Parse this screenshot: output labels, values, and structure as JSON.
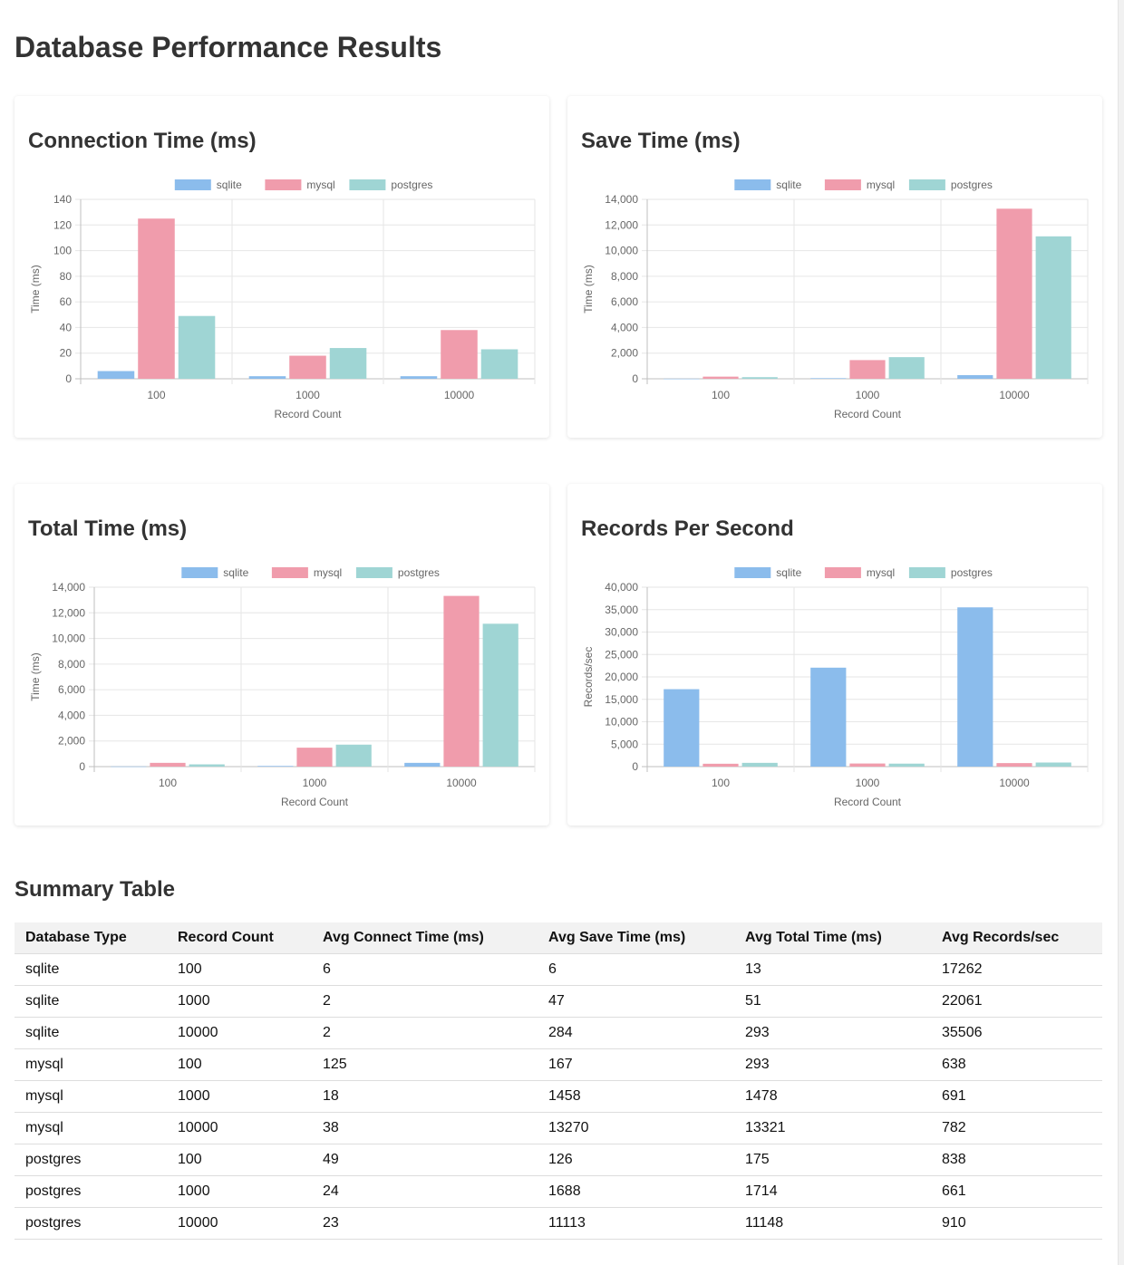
{
  "page": {
    "title": "Database Performance Results"
  },
  "series_names": [
    "sqlite",
    "mysql",
    "postgres"
  ],
  "colors": {
    "sqlite": "#8bbcec",
    "mysql": "#f09cac",
    "postgres": "#9fd5d4"
  },
  "chart_data": [
    {
      "type": "bar",
      "title": "Connection Time (ms)",
      "xlabel": "Record Count",
      "ylabel": "Time (ms)",
      "categories": [
        "100",
        "1000",
        "10000"
      ],
      "ylim": [
        0,
        140
      ],
      "yticks": [
        "0",
        "20",
        "40",
        "60",
        "80",
        "100",
        "120",
        "140"
      ],
      "series": [
        {
          "name": "sqlite",
          "values": [
            6,
            2,
            2
          ]
        },
        {
          "name": "mysql",
          "values": [
            125,
            18,
            38
          ]
        },
        {
          "name": "postgres",
          "values": [
            49,
            24,
            23
          ]
        }
      ],
      "legend": "top-center",
      "grid": true
    },
    {
      "type": "bar",
      "title": "Save Time (ms)",
      "xlabel": "Record Count",
      "ylabel": "Time (ms)",
      "categories": [
        "100",
        "1000",
        "10000"
      ],
      "ylim": [
        0,
        14000
      ],
      "yticks": [
        "0",
        "2,000",
        "4,000",
        "6,000",
        "8,000",
        "10,000",
        "12,000",
        "14,000"
      ],
      "series": [
        {
          "name": "sqlite",
          "values": [
            6,
            47,
            284
          ]
        },
        {
          "name": "mysql",
          "values": [
            167,
            1458,
            13270
          ]
        },
        {
          "name": "postgres",
          "values": [
            126,
            1688,
            11113
          ]
        }
      ],
      "legend": "top-center",
      "grid": true
    },
    {
      "type": "bar",
      "title": "Total Time (ms)",
      "xlabel": "Record Count",
      "ylabel": "Time (ms)",
      "categories": [
        "100",
        "1000",
        "10000"
      ],
      "ylim": [
        0,
        14000
      ],
      "yticks": [
        "0",
        "2,000",
        "4,000",
        "6,000",
        "8,000",
        "10,000",
        "12,000",
        "14,000"
      ],
      "series": [
        {
          "name": "sqlite",
          "values": [
            13,
            51,
            293
          ]
        },
        {
          "name": "mysql",
          "values": [
            293,
            1478,
            13321
          ]
        },
        {
          "name": "postgres",
          "values": [
            175,
            1714,
            11148
          ]
        }
      ],
      "legend": "top-center",
      "grid": true
    },
    {
      "type": "bar",
      "title": "Records Per Second",
      "xlabel": "Record Count",
      "ylabel": "Records/sec",
      "categories": [
        "100",
        "1000",
        "10000"
      ],
      "ylim": [
        0,
        40000
      ],
      "yticks": [
        "0",
        "5,000",
        "10,000",
        "15,000",
        "20,000",
        "25,000",
        "30,000",
        "35,000",
        "40,000"
      ],
      "series": [
        {
          "name": "sqlite",
          "values": [
            17262,
            22061,
            35506
          ]
        },
        {
          "name": "mysql",
          "values": [
            638,
            691,
            782
          ]
        },
        {
          "name": "postgres",
          "values": [
            838,
            661,
            910
          ]
        }
      ],
      "legend": "top-center",
      "grid": true
    }
  ],
  "summary": {
    "title": "Summary Table",
    "columns": [
      "Database Type",
      "Record Count",
      "Avg Connect Time (ms)",
      "Avg Save Time (ms)",
      "Avg Total Time (ms)",
      "Avg Records/sec"
    ],
    "rows": [
      [
        "sqlite",
        "100",
        "6",
        "6",
        "13",
        "17262"
      ],
      [
        "sqlite",
        "1000",
        "2",
        "47",
        "51",
        "22061"
      ],
      [
        "sqlite",
        "10000",
        "2",
        "284",
        "293",
        "35506"
      ],
      [
        "mysql",
        "100",
        "125",
        "167",
        "293",
        "638"
      ],
      [
        "mysql",
        "1000",
        "18",
        "1458",
        "1478",
        "691"
      ],
      [
        "mysql",
        "10000",
        "38",
        "13270",
        "13321",
        "782"
      ],
      [
        "postgres",
        "100",
        "49",
        "126",
        "175",
        "838"
      ],
      [
        "postgres",
        "1000",
        "24",
        "1688",
        "1714",
        "661"
      ],
      [
        "postgres",
        "10000",
        "23",
        "11113",
        "11148",
        "910"
      ]
    ]
  }
}
